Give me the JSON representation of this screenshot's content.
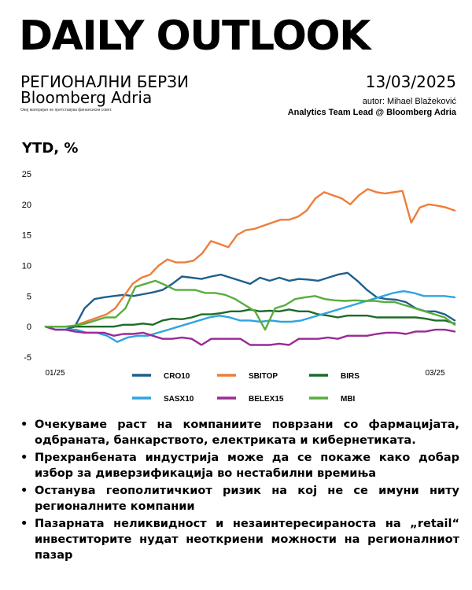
{
  "header": {
    "title": "DAILY OUTLOOK",
    "subtitle": "РЕГИОНАЛНИ БЕРЗИ",
    "brand": "Bloomberg Adria",
    "disclaimer": "Овој материјал не претставува финансиски совет.",
    "date": "13/03/2025",
    "author": "autor: Mihael Blažeković",
    "role": "Analytics Team Lead @ Bloomberg Adria"
  },
  "chart_data": {
    "type": "line",
    "title": "YTD, %",
    "ylim": [
      -5,
      25
    ],
    "yticks": [
      "25",
      "20",
      "15",
      "10",
      "5",
      "0",
      "-5"
    ],
    "x_tick_labels": [
      "01/25",
      "03/25"
    ],
    "grid": false,
    "legend": "bottom",
    "series": [
      {
        "name": "CRO10",
        "color": "#1f5f8b",
        "values": [
          0,
          -0.5,
          -0.5,
          0,
          3,
          4.5,
          4.8,
          5,
          5.2,
          5,
          5.3,
          5.6,
          6,
          7,
          8.2,
          8,
          7.8,
          8.2,
          8.5,
          8,
          7.5,
          7,
          8,
          7.5,
          8,
          7.5,
          7.8,
          7.7,
          7.5,
          8,
          8.5,
          8.8,
          7.5,
          6,
          4.8,
          4.5,
          4.4,
          4,
          3,
          2.5,
          2.5,
          2,
          1
        ]
      },
      {
        "name": "SBITOP",
        "color": "#ee7d3b",
        "values": [
          0,
          0,
          0,
          0,
          0.5,
          1,
          1.5,
          2,
          3,
          5,
          7,
          8,
          8.5,
          10,
          11,
          10.5,
          10.5,
          10.8,
          12,
          14,
          13.5,
          13,
          15,
          15.8,
          16,
          16.5,
          17,
          17.5,
          17.5,
          18,
          19,
          21,
          22,
          21.5,
          21,
          20,
          21.5,
          22.5,
          22,
          21.8,
          22,
          22.2,
          17,
          19.5,
          20,
          19.8,
          19.5,
          19
        ]
      },
      {
        "name": "BIRS",
        "color": "#1e6b2a",
        "values": [
          0,
          0,
          0,
          0,
          0,
          0,
          0,
          0,
          0.3,
          0.3,
          0.5,
          0.3,
          1,
          1.3,
          1.2,
          1.5,
          2,
          2,
          2.2,
          2.5,
          2.5,
          2.8,
          2.5,
          2.6,
          2.5,
          2.8,
          2.5,
          2.5,
          2,
          1.8,
          1.5,
          1.8,
          1.8,
          1.8,
          1.5,
          1.5,
          1.5,
          1.5,
          1.5,
          1.3,
          1,
          1,
          0.5
        ]
      },
      {
        "name": "SASX10",
        "color": "#2fa4e0",
        "values": [
          0,
          -0.5,
          -0.5,
          -0.5,
          -1,
          -1,
          -1.5,
          -2.5,
          -1.8,
          -1.5,
          -1.5,
          -1,
          -0.5,
          0,
          0.5,
          1,
          1.5,
          1.8,
          1.5,
          1,
          1,
          0.8,
          1,
          0.8,
          0.8,
          1,
          1.5,
          2,
          2.5,
          3,
          3.5,
          4,
          4.5,
          5,
          5.5,
          5.8,
          5.5,
          5,
          5,
          5,
          4.8
        ]
      },
      {
        "name": "BELEX15",
        "color": "#9b2a96",
        "values": [
          0,
          -0.5,
          -0.5,
          -0.8,
          -1,
          -1,
          -1,
          -1.5,
          -1.2,
          -1.2,
          -1,
          -1.5,
          -2,
          -2,
          -1.8,
          -2,
          -3,
          -2,
          -2,
          -2,
          -2,
          -3,
          -3,
          -3,
          -2.8,
          -3,
          -2,
          -2,
          -2,
          -1.8,
          -2,
          -1.5,
          -1.5,
          -1.5,
          -1.2,
          -1,
          -1,
          -1.2,
          -0.8,
          -0.8,
          -0.5,
          -0.5,
          -0.8
        ]
      },
      {
        "name": "MBI",
        "color": "#58ad3d",
        "values": [
          0,
          0,
          0,
          0.2,
          0.5,
          1,
          1.5,
          1.5,
          3,
          6.5,
          7,
          7.5,
          6.8,
          6,
          6,
          6,
          5.5,
          5.5,
          5.2,
          4.5,
          3.5,
          2.5,
          -0.5,
          3,
          3.5,
          4.5,
          4.8,
          5,
          4.5,
          4.3,
          4.2,
          4.3,
          4.2,
          4.2,
          4,
          4,
          3.5,
          3,
          2.5,
          2,
          1.5,
          0.3
        ]
      }
    ]
  },
  "bullets": [
    "Очекуваме раст на компаниите поврзани со фармацијата, одбраната, банкарството, електриката и кибернетиката.",
    "Прехранбената индустрија може да се покаже како добар избор за диверзификација во нестабилни времиња",
    "Останува геополитичкиот ризик на кој не се имуни ниту регионалните компании",
    "Пазарната неликвидност и незаинтересираноста на „retail“ инвеститорите нудат неоткриени можности на регионалниот пазар"
  ],
  "bullet_symbol": "•"
}
